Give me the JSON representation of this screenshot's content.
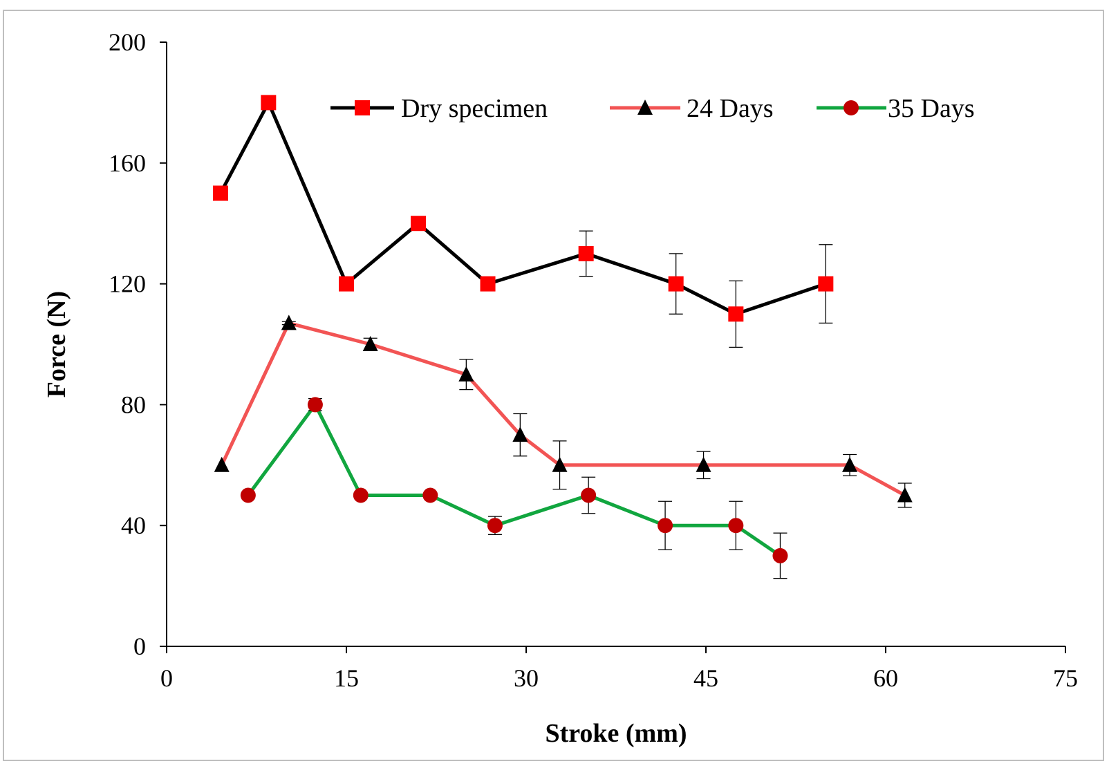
{
  "chart_data": {
    "type": "line",
    "title": "",
    "xlabel": "Stroke (mm)",
    "ylabel": "Force (N)",
    "xlim": [
      0,
      75
    ],
    "ylim": [
      0,
      200
    ],
    "xticks": [
      0,
      15,
      30,
      45,
      60,
      75
    ],
    "yticks": [
      0,
      40,
      80,
      120,
      160,
      200
    ],
    "xtick_labels": [
      "0",
      "15",
      "30",
      "45",
      "60",
      "75"
    ],
    "ytick_labels": [
      "0",
      "40",
      "80",
      "120",
      "160",
      "200"
    ],
    "grid": false,
    "legend_position": "top",
    "series": [
      {
        "name": "Dry specimen",
        "line_color": "#000000",
        "marker": "square",
        "marker_color": "#ff0000",
        "x": [
          4.5,
          8.5,
          15,
          21,
          26.8,
          35,
          42.5,
          47.5,
          55
        ],
        "y": [
          150,
          180,
          120,
          140,
          120,
          130,
          120,
          110,
          120
        ],
        "err": [
          0,
          0,
          0,
          0,
          1.5,
          7.5,
          10,
          11,
          13
        ]
      },
      {
        "name": "24 Days",
        "line_color": "#f25454",
        "marker": "triangle",
        "marker_color": "#000000",
        "x": [
          4.6,
          10.2,
          17,
          25,
          29.5,
          32.8,
          44.8,
          57,
          61.6
        ],
        "y": [
          60,
          107,
          100,
          90,
          70,
          60,
          60,
          60,
          50
        ],
        "err": [
          0,
          0.5,
          2,
          5,
          7,
          8,
          4.5,
          3.5,
          4
        ]
      },
      {
        "name": "35 Days",
        "line_color": "#11a63f",
        "marker": "circle",
        "marker_color": "#c00000",
        "x": [
          6.8,
          12.4,
          16.2,
          22,
          27.4,
          35.2,
          41.6,
          47.5,
          51.2
        ],
        "y": [
          50,
          80,
          50,
          50,
          40,
          50,
          40,
          40,
          30
        ],
        "err": [
          0,
          2,
          0,
          0,
          3,
          6,
          8,
          8,
          7.5
        ]
      }
    ]
  }
}
